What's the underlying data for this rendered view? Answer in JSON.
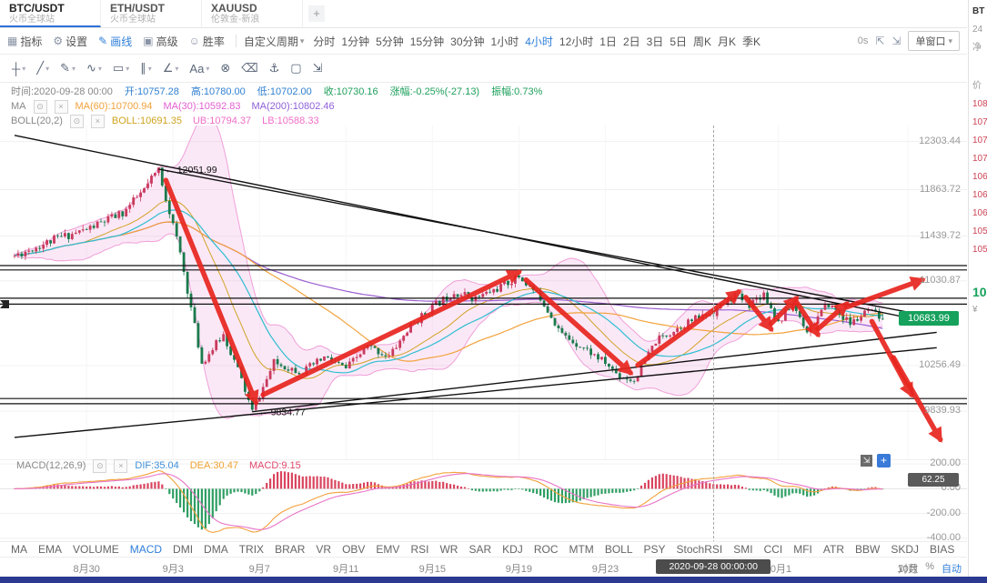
{
  "icons": {
    "caret": "▾",
    "eye": "⊙",
    "close": "×",
    "grid": "▦",
    "gear": "⚙",
    "pencil": "✎",
    "layers": "▣",
    "smiley": "☺",
    "fullscreen": "⇱",
    "window": "⇲",
    "plus": "+",
    "expand": "⇲"
  },
  "tab_bar": {
    "tabs": [
      {
        "symbol": "BTC/USDT",
        "exchange": "火币全球站",
        "active": true
      },
      {
        "symbol": "ETH/USDT",
        "exchange": "火币全球站",
        "active": false
      },
      {
        "symbol": "XAUUSD",
        "exchange": "伦敦金-新浪",
        "active": false
      }
    ],
    "add_button": "+"
  },
  "main_toolbar": {
    "indicator_btn": "指标",
    "settings_btn": "设置",
    "draw_btn": "画线",
    "advanced_btn": "高级",
    "winrate_btn": "胜率",
    "custom_period": "自定义周期",
    "periods": [
      "分时",
      "1分钟",
      "5分钟",
      "15分钟",
      "30分钟",
      "1小时",
      "4小时",
      "12小时",
      "1日",
      "2日",
      "3日",
      "5日",
      "周K",
      "月K",
      "季K"
    ],
    "active_period": "4小时",
    "countdown": "0s",
    "window_mode": "单窗口"
  },
  "draw_toolbar": {
    "tools": [
      {
        "glyph": "┼",
        "name": "crosshair-tool",
        "dropdown": true
      },
      {
        "glyph": "╱",
        "name": "trendline-tool",
        "dropdown": true
      },
      {
        "glyph": "✎",
        "name": "pencil-tool",
        "dropdown": true
      },
      {
        "glyph": "∿",
        "name": "wave-tool",
        "dropdown": true
      },
      {
        "glyph": "▭",
        "name": "rectangle-tool",
        "dropdown": true
      },
      {
        "glyph": "∥",
        "name": "parallel-channel-tool",
        "dropdown": true
      },
      {
        "glyph": "∠",
        "name": "angle-tool",
        "dropdown": true
      },
      {
        "glyph": "Aa",
        "name": "text-tool",
        "dropdown": true
      },
      {
        "glyph": "⊗",
        "name": "remove-drawing-tool",
        "dropdown": false
      },
      {
        "glyph": "⌫",
        "name": "eraser-tool",
        "dropdown": false
      },
      {
        "glyph": "⚓",
        "name": "anchor-tool",
        "dropdown": false
      },
      {
        "glyph": "▢",
        "name": "screenshot-tool",
        "dropdown": false
      },
      {
        "glyph": "⇲",
        "name": "export-tool",
        "dropdown": false
      }
    ]
  },
  "ohlc_bar": {
    "fields": [
      {
        "name": "time-label",
        "text": "时间:2020-09-28 00:00",
        "color": "#888888"
      },
      {
        "name": "open-value",
        "text": "开:10757.28",
        "color": "#3080d0"
      },
      {
        "name": "high-value",
        "text": "高:10780.00",
        "color": "#3080d0"
      },
      {
        "name": "low-value",
        "text": "低:10702.00",
        "color": "#3080d0"
      },
      {
        "name": "close-value",
        "text": "收:10730.16",
        "color": "#1fa05c"
      },
      {
        "name": "change-value",
        "text": "涨幅:-0.25%(-27.13)",
        "color": "#1fa05c"
      },
      {
        "name": "amplitude-value",
        "text": "振幅:0.73%",
        "color": "#1fa05c"
      }
    ]
  },
  "ma_legend": {
    "name": "MA",
    "items": [
      {
        "name": "ma60-value",
        "text": "MA(60):10700.94",
        "color": "#f2a23c"
      },
      {
        "name": "ma30-value",
        "text": "MA(30):10592.83",
        "color": "#e35fd0"
      },
      {
        "name": "ma200-value",
        "text": "MA(200):10802.46",
        "color": "#8f5fd8"
      }
    ]
  },
  "boll_legend": {
    "name": "BOLL(20,2)",
    "items": [
      {
        "name": "boll-mid-value",
        "text": "BOLL:10691.35",
        "color": "#cfa31f"
      },
      {
        "name": "boll-ub-value",
        "text": "UB:10794.37",
        "color": "#ef6fc8"
      },
      {
        "name": "boll-lb-value",
        "text": "LB:10588.33",
        "color": "#ef6fc8"
      }
    ]
  },
  "macd_legend": {
    "name": "MACD(12,26,9)",
    "items": [
      {
        "name": "dif-value",
        "text": "DIF:35.04",
        "color": "#3f8fd8"
      },
      {
        "name": "dea-value",
        "text": "DEA:30.47",
        "color": "#f0a030"
      },
      {
        "name": "macd-value",
        "text": "MACD:9.15",
        "color": "#e0486c"
      }
    ]
  },
  "indicator_tabs": {
    "items": [
      "MA",
      "EMA",
      "VOLUME",
      "MACD",
      "DMI",
      "DMA",
      "TRIX",
      "BRAR",
      "VR",
      "OBV",
      "EMV",
      "RSI",
      "WR",
      "SAR",
      "KDJ",
      "ROC",
      "MTM",
      "BOLL",
      "PSY",
      "StochRSI",
      "SMI",
      "CCI",
      "MFI",
      "ATR",
      "BBW",
      "SKDJ",
      "BIAS"
    ],
    "active": "MACD"
  },
  "scale_options": {
    "items": [
      "对数",
      "%",
      "自动"
    ],
    "active": "自动"
  },
  "price_axis": {
    "ticks": [
      "12303.44",
      "11863.72",
      "11439.72",
      "11030.87",
      "10256.49",
      "9839.93"
    ],
    "last_price": {
      "value": "10683.99",
      "color": "#16a15c"
    }
  },
  "macd_axis": {
    "ticks": [
      "200.00",
      "0.00",
      "-200.00",
      "-400.00"
    ],
    "badge": "62.25"
  },
  "x_axis": {
    "labels": [
      {
        "text": "8月30",
        "i": 20
      },
      {
        "text": "9月3",
        "i": 44
      },
      {
        "text": "9月7",
        "i": 68
      },
      {
        "text": "9月11",
        "i": 92
      },
      {
        "text": "9月15",
        "i": 116
      },
      {
        "text": "9月19",
        "i": 140
      },
      {
        "text": "9月23",
        "i": 164
      },
      {
        "text": "10月1",
        "i": 212
      },
      {
        "text": "10月",
        "i": 248
      }
    ],
    "crosshair": {
      "i": 194,
      "text": "2020-09-28 00:00:00"
    }
  },
  "side_panel": {
    "rows": [
      {
        "t": "BT",
        "c": "#333333",
        "b": 1
      },
      {
        "t": "24",
        "c": "#9a9a9a"
      },
      {
        "t": "净",
        "c": "#9a9a9a"
      },
      {
        "gap": 22
      },
      {
        "t": "价",
        "c": "#9a9a9a"
      },
      {
        "t": "108",
        "c": "#cc4455"
      },
      {
        "t": "107",
        "c": "#cc4455"
      },
      {
        "t": "107",
        "c": "#cc4455"
      },
      {
        "t": "107",
        "c": "#cc4455"
      },
      {
        "t": "106",
        "c": "#cc4455"
      },
      {
        "t": "106",
        "c": "#cc4455"
      },
      {
        "t": "106",
        "c": "#cc4455"
      },
      {
        "t": "105",
        "c": "#cc4455"
      },
      {
        "t": "105",
        "c": "#cc4455"
      },
      {
        "gap": 26
      },
      {
        "t": "10",
        "c": "#16a15c",
        "b": 1,
        "big": 1
      },
      {
        "t": "¥",
        "c": "#9a9a9a"
      }
    ]
  },
  "chart_data": {
    "type": "candlestick",
    "symbol": "BTC/USDT",
    "timeframe": "4小时",
    "visible_price_range": [
      9400,
      12450
    ],
    "candle_count": 242,
    "price_path_anchors": [
      [
        0,
        11260
      ],
      [
        12,
        11420
      ],
      [
        20,
        11500
      ],
      [
        30,
        11650
      ],
      [
        36,
        11860
      ],
      [
        40,
        12051.99
      ],
      [
        46,
        11280
      ],
      [
        52,
        10280
      ],
      [
        58,
        10540
      ],
      [
        62,
        10220
      ],
      [
        66,
        9834.77
      ],
      [
        72,
        10280
      ],
      [
        80,
        10200
      ],
      [
        86,
        10330
      ],
      [
        92,
        10230
      ],
      [
        98,
        10430
      ],
      [
        104,
        10340
      ],
      [
        110,
        10620
      ],
      [
        116,
        10790
      ],
      [
        122,
        10930
      ],
      [
        128,
        10870
      ],
      [
        134,
        10960
      ],
      [
        140,
        11070
      ],
      [
        146,
        10880
      ],
      [
        152,
        10540
      ],
      [
        158,
        10420
      ],
      [
        164,
        10280
      ],
      [
        168,
        10160
      ],
      [
        172,
        10120
      ],
      [
        178,
        10480
      ],
      [
        186,
        10640
      ],
      [
        194,
        10745
      ],
      [
        200,
        10900
      ],
      [
        204,
        10820
      ],
      [
        208,
        10920
      ],
      [
        212,
        10650
      ],
      [
        216,
        10820
      ],
      [
        220,
        10580
      ],
      [
        226,
        10820
      ],
      [
        232,
        10640
      ],
      [
        237,
        10750
      ],
      [
        241,
        10683.99
      ]
    ],
    "key_points": {
      "high": {
        "i": 40,
        "price": 12051.99,
        "label": "← 12051.99"
      },
      "low": {
        "i": 66,
        "price": 9834.77,
        "label": "← 9834.77"
      }
    },
    "current_candle": {
      "i": 194,
      "open": 10757.28,
      "high": 10780.0,
      "low": 10702.0,
      "close": 10730.16
    },
    "last_close": 10683.99,
    "horizontal_lines": [
      11170,
      11130,
      10872,
      10818,
      9955,
      9908
    ],
    "trend_lines": [
      [
        [
          0,
          12360
        ],
        [
          256,
          10640
        ]
      ],
      [
        [
          40,
          12051.99
        ],
        [
          252,
          10720
        ]
      ],
      [
        [
          0,
          9600
        ],
        [
          256,
          10420
        ]
      ],
      [
        [
          66,
          9834.77
        ],
        [
          256,
          10560
        ]
      ]
    ],
    "arrows": [
      [
        42,
        11950,
        67,
        9920
      ],
      [
        69,
        9990,
        140,
        11110
      ],
      [
        142,
        11040,
        171,
        10190
      ],
      [
        173,
        10260,
        201,
        10930
      ],
      [
        203,
        10880,
        210,
        10590
      ],
      [
        210,
        10640,
        217,
        10870
      ],
      [
        217,
        10840,
        223,
        10540
      ],
      [
        223,
        10590,
        231,
        10820
      ],
      [
        231,
        10790,
        252,
        11040
      ],
      [
        238,
        10660,
        249,
        9990
      ],
      [
        244,
        10330,
        257,
        9580
      ]
    ],
    "arrow_color": "#e8251f",
    "up_color": "#c93a5c",
    "down_color": "#1a7a4c",
    "ma_colors": {
      "ma30": "#2fbfd0",
      "ma60": "#f2a23c",
      "ma200": "#9a5fd0"
    },
    "boll_style": {
      "fill": "rgba(238,160,220,0.24)",
      "line": "#efa0d8",
      "mid": "#d0a428"
    },
    "macd_panel": {
      "range": [
        230,
        -430
      ],
      "dif_color": "#f2a23c",
      "dea_color": "#e873c8",
      "up": "#d9455f",
      "down": "#2e9e63"
    },
    "alert_marker_price": 10820
  }
}
